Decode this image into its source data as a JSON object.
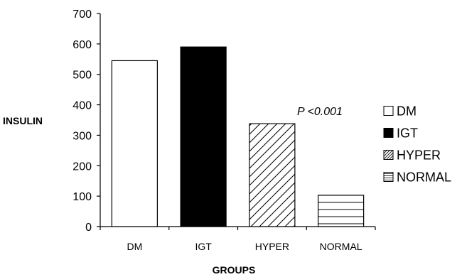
{
  "chart_data": {
    "type": "bar",
    "categories": [
      "DM",
      "IGT",
      "HYPER",
      "NORMAL"
    ],
    "values": [
      545,
      590,
      338,
      103
    ],
    "patterns": [
      "white",
      "black",
      "diagonal",
      "horizontal"
    ],
    "xlabel": "GROUPS",
    "ylabel": "INSULIN",
    "ylim": [
      0,
      700
    ],
    "yticks": [
      0,
      100,
      200,
      300,
      400,
      500,
      600,
      700
    ],
    "annotation": "P <0.001",
    "legend": [
      "DM",
      "IGT",
      "HYPER",
      "NORMAL"
    ],
    "legend_position": "right",
    "grid": false
  }
}
